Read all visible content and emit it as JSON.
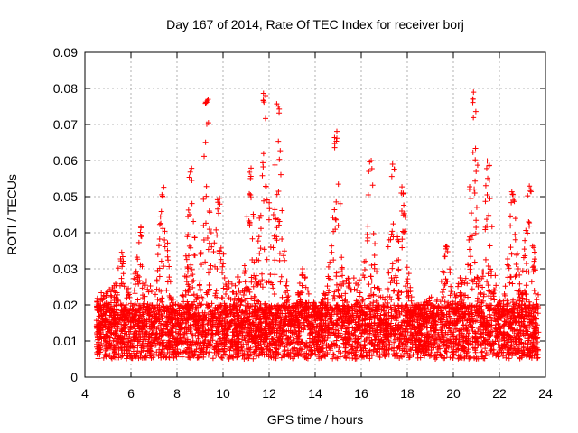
{
  "chart_data": {
    "type": "scatter",
    "title": "Day 167 of 2014, Rate Of TEC Index for receiver borj",
    "xlabel": "GPS time / hours",
    "ylabel": "ROTI / TECUs",
    "xlim": [
      4,
      24
    ],
    "ylim": [
      0,
      0.09
    ],
    "xticks": [
      4,
      6,
      8,
      10,
      12,
      14,
      16,
      18,
      20,
      22,
      24
    ],
    "yticks": [
      0,
      0.01,
      0.02,
      0.03,
      0.04,
      0.05,
      0.06,
      0.07,
      0.08,
      0.09
    ],
    "xtick_labels": [
      "4",
      "6",
      "8",
      "10",
      "12",
      "14",
      "16",
      "18",
      "20",
      "22",
      "24"
    ],
    "ytick_labels": [
      "0",
      "0.01",
      "0.02",
      "0.03",
      "0.04",
      "0.05",
      "0.06",
      "0.07",
      "0.08",
      "0.09"
    ],
    "grid": true,
    "marker": "+",
    "color": "#ff0000",
    "series": [
      {
        "name": "ROTI",
        "x_range": [
          4.5,
          23.7
        ],
        "baseline_band": [
          0.005,
          0.02
        ],
        "peaks": [
          {
            "x": 4.6,
            "y": 0.022
          },
          {
            "x": 5.6,
            "y": 0.035
          },
          {
            "x": 6.4,
            "y": 0.042
          },
          {
            "x": 7.4,
            "y": 0.053
          },
          {
            "x": 8.6,
            "y": 0.058
          },
          {
            "x": 9.3,
            "y": 0.078
          },
          {
            "x": 9.8,
            "y": 0.05
          },
          {
            "x": 11.2,
            "y": 0.058
          },
          {
            "x": 11.8,
            "y": 0.08
          },
          {
            "x": 12.4,
            "y": 0.077
          },
          {
            "x": 13.5,
            "y": 0.03
          },
          {
            "x": 14.9,
            "y": 0.069
          },
          {
            "x": 16.4,
            "y": 0.061
          },
          {
            "x": 17.4,
            "y": 0.059
          },
          {
            "x": 17.8,
            "y": 0.053
          },
          {
            "x": 19.7,
            "y": 0.037
          },
          {
            "x": 20.9,
            "y": 0.079
          },
          {
            "x": 21.5,
            "y": 0.061
          },
          {
            "x": 22.6,
            "y": 0.052
          },
          {
            "x": 23.3,
            "y": 0.054
          }
        ]
      }
    ]
  }
}
